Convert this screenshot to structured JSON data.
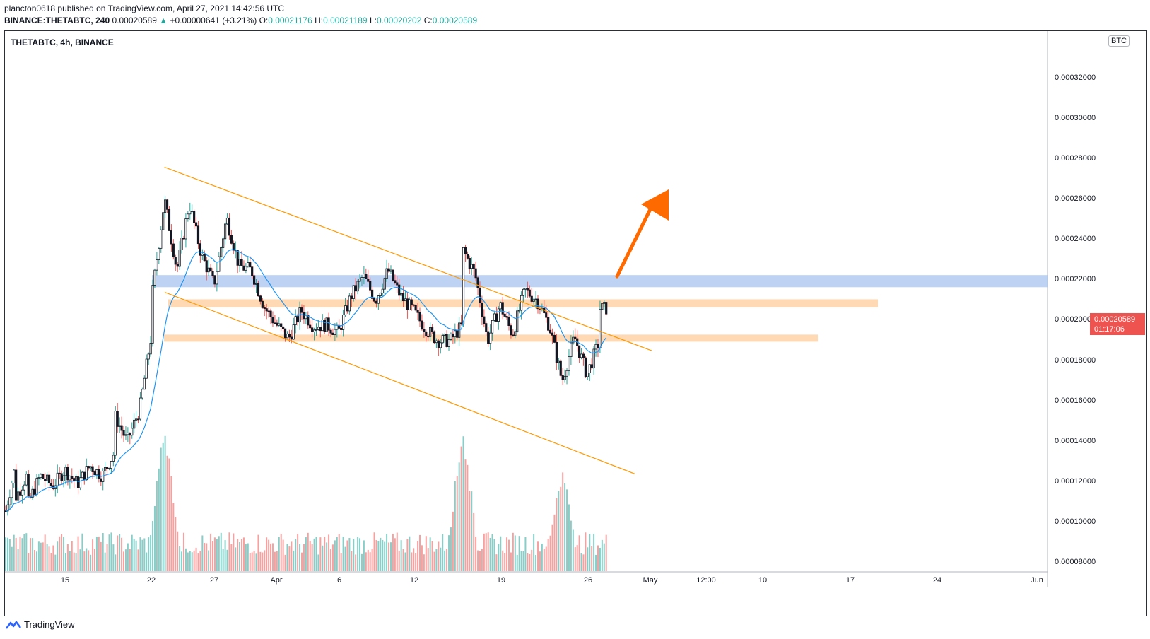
{
  "header": {
    "line1": "plancton0618 published on TradingView.com, April 27, 2021 14:42:56 UTC",
    "symbol": "BINANCE:THETABTC, 240",
    "last": "0.00020589",
    "change": "+0.00000641 (+3.21%)",
    "o_label": "O:",
    "o": "0.00021176",
    "h_label": "H:",
    "h": "0.00021189",
    "l_label": "L:",
    "l": "0.00020202",
    "c_label": "C:",
    "c": "0.00020589"
  },
  "chart_title": "THETABTC, 4h, BINANCE",
  "currency_badge": "BTC",
  "price_tag": {
    "price": "0.00020589",
    "countdown": "01:17:06"
  },
  "footer": {
    "brand": "TradingView"
  },
  "colors": {
    "up": "#26a69a",
    "down": "#ef5350",
    "trend": "#ff9800",
    "ma": "#2196f3",
    "support": "#ffcc99",
    "resistance": "#a8c4f0",
    "arrow": "#ff6a00"
  },
  "chart_data": {
    "type": "candlestick",
    "title": "THETABTC, 4h, BINANCE",
    "y_axis": {
      "ticks": [
        "0.00008000",
        "0.00010000",
        "0.00012000",
        "0.00014000",
        "0.00016000",
        "0.00018000",
        "0.00020000",
        "0.00022000",
        "0.00024000",
        "0.00026000",
        "0.00028000",
        "0.00030000",
        "0.00032000"
      ],
      "range": [
        7.55e-05,
        0.0003435
      ]
    },
    "x_axis": {
      "labels": [
        "15",
        "22",
        "27",
        "Apr",
        "6",
        "12",
        "19",
        "26",
        "May",
        "12:00",
        "10",
        "17",
        "24",
        "Jun"
      ]
    },
    "path_points": [
      [
        "2021-03-10",
        9.93e-05
      ],
      [
        "2021-03-11",
        0.000128
      ],
      [
        "2021-03-11",
        0.000112
      ],
      [
        "2021-03-12",
        0.000124
      ],
      [
        "2021-03-12",
        0.000109
      ],
      [
        "2021-03-13",
        0.000123
      ],
      [
        "2021-03-14",
        0.000118
      ],
      [
        "2021-03-15",
        0.000126
      ],
      [
        "2021-03-16",
        0.000119
      ],
      [
        "2021-03-17",
        0.000128
      ],
      [
        "2021-03-18",
        0.000123
      ],
      [
        "2021-03-19",
        0.000135
      ],
      [
        "2021-03-19",
        0.000153
      ],
      [
        "2021-03-20",
        0.00014
      ],
      [
        "2021-03-21",
        0.000156
      ],
      [
        "2021-03-22",
        0.000195
      ],
      [
        "2021-03-22",
        0.000212
      ],
      [
        "2021-03-23",
        0.00026
      ],
      [
        "2021-03-24",
        0.000225
      ],
      [
        "2021-03-25",
        0.000258
      ],
      [
        "2021-03-26",
        0.000232
      ],
      [
        "2021-03-27",
        0.000218
      ],
      [
        "2021-03-28",
        0.000251
      ],
      [
        "2021-03-29",
        0.000227
      ],
      [
        "2021-03-30",
        0.000225
      ],
      [
        "2021-03-31",
        0.000207
      ],
      [
        "2021-04-01",
        0.000198
      ],
      [
        "2021-04-02",
        0.000191
      ],
      [
        "2021-04-03",
        0.000205
      ],
      [
        "2021-04-04",
        0.000197
      ],
      [
        "2021-04-05",
        0.000198
      ],
      [
        "2021-04-06",
        0.000194
      ],
      [
        "2021-04-07",
        0.000212
      ],
      [
        "2021-04-08",
        0.000222
      ],
      [
        "2021-04-09",
        0.00021
      ],
      [
        "2021-04-10",
        0.000225
      ],
      [
        "2021-04-11",
        0.000212
      ],
      [
        "2021-04-12",
        0.000205
      ],
      [
        "2021-04-13",
        0.000196
      ],
      [
        "2021-04-14",
        0.00019
      ],
      [
        "2021-04-15",
        0.00019
      ],
      [
        "2021-04-16",
        0.000198
      ],
      [
        "2021-04-16",
        0.000235
      ],
      [
        "2021-04-17",
        0.000223
      ],
      [
        "2021-04-18",
        0.00019
      ],
      [
        "2021-04-19",
        0.000208
      ],
      [
        "2021-04-20",
        0.000193
      ],
      [
        "2021-04-21",
        0.000215
      ],
      [
        "2021-04-22",
        0.00021
      ],
      [
        "2021-04-23",
        0.000197
      ],
      [
        "2021-04-24",
        0.00017
      ],
      [
        "2021-04-25",
        0.000192
      ],
      [
        "2021-04-26",
        0.000173
      ],
      [
        "2021-04-27",
        0.00019
      ],
      [
        "2021-04-27",
        0.000206
      ]
    ],
    "volume_path_points": [
      [
        "2021-03-23",
        0.42
      ],
      [
        "2021-04-16",
        0.4
      ],
      [
        "2021-04-24",
        0.28
      ]
    ],
    "drawings": {
      "channel_upper": [
        [
          "2021-03-23",
          0.000276
        ],
        [
          "2021-05-01",
          0.000185
        ]
      ],
      "channel_lower": [
        [
          "2021-03-22",
          0.000214
        ],
        [
          "2021-05-01",
          0.000124
        ]
      ],
      "resistance_zone": [
        0.0002165,
        0.0002225
      ],
      "support_zone_1": [
        0.0002065,
        0.0002105
      ],
      "support_zone_2": [
        0.0001895,
        0.000193
      ]
    }
  }
}
